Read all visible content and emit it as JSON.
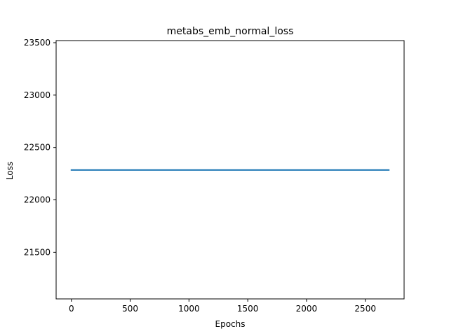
{
  "chart_data": {
    "type": "line",
    "title": "metabs_emb_normal_loss",
    "xlabel": "Epochs",
    "ylabel": "Loss",
    "xlim": [
      -130,
      2830
    ],
    "ylim": [
      21055,
      23520
    ],
    "xticks": [
      0,
      500,
      1000,
      1500,
      2000,
      2500
    ],
    "yticks": [
      21500,
      22000,
      22500,
      23000,
      23500
    ],
    "grid": false,
    "series": [
      {
        "color": "#1f77b4",
        "x": [
          0,
          2700
        ],
        "y": [
          22285,
          22285
        ]
      }
    ]
  }
}
